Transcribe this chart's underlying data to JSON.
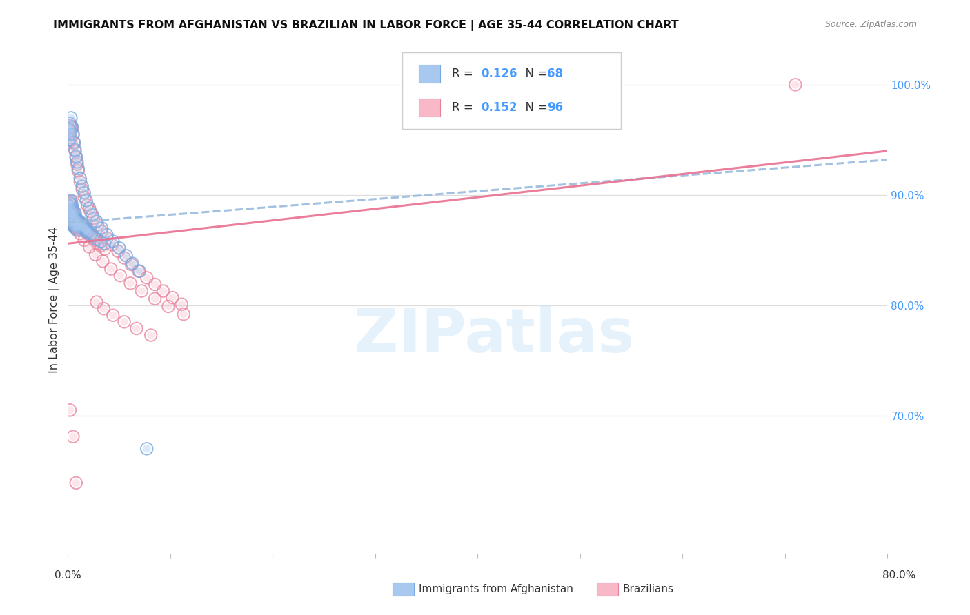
{
  "title": "IMMIGRANTS FROM AFGHANISTAN VS BRAZILIAN IN LABOR FORCE | AGE 35-44 CORRELATION CHART",
  "source": "Source: ZipAtlas.com",
  "xmin": 0.0,
  "xmax": 0.8,
  "ymin": 0.575,
  "ymax": 1.035,
  "afghanistan_color": "#a8c8f0",
  "afghanistan_edge": "#78a8e0",
  "brazil_color": "#f8b8c8",
  "brazil_edge": "#e88098",
  "trend_afg_color": "#99bbdd",
  "trend_bra_color": "#e87090",
  "afghanistan_R": 0.126,
  "afghanistan_N": 68,
  "brazil_R": 0.152,
  "brazil_N": 96,
  "legend_value_color": "#4499ff",
  "right_axis_color": "#4499ff",
  "watermark": "ZIPatlas",
  "grid_color": "#dddddd",
  "afg_x": [
    0.001,
    0.001,
    0.001,
    0.002,
    0.002,
    0.002,
    0.003,
    0.003,
    0.003,
    0.004,
    0.004,
    0.004,
    0.005,
    0.005,
    0.005,
    0.006,
    0.006,
    0.007,
    0.007,
    0.008,
    0.008,
    0.009,
    0.009,
    0.01,
    0.01,
    0.011,
    0.012,
    0.013,
    0.014,
    0.015,
    0.016,
    0.017,
    0.018,
    0.019,
    0.02,
    0.022,
    0.025,
    0.028,
    0.032,
    0.036,
    0.001,
    0.001,
    0.002,
    0.002,
    0.003,
    0.003,
    0.004,
    0.005,
    0.006,
    0.007,
    0.008,
    0.009,
    0.01,
    0.012,
    0.014,
    0.016,
    0.018,
    0.021,
    0.024,
    0.028,
    0.033,
    0.038,
    0.044,
    0.05,
    0.057,
    0.063,
    0.07,
    0.077
  ],
  "afg_y": [
    0.883,
    0.877,
    0.89,
    0.885,
    0.893,
    0.875,
    0.887,
    0.881,
    0.895,
    0.883,
    0.875,
    0.891,
    0.878,
    0.886,
    0.872,
    0.882,
    0.876,
    0.884,
    0.87,
    0.879,
    0.873,
    0.876,
    0.868,
    0.877,
    0.871,
    0.874,
    0.872,
    0.875,
    0.871,
    0.873,
    0.87,
    0.868,
    0.869,
    0.866,
    0.867,
    0.865,
    0.863,
    0.86,
    0.858,
    0.856,
    0.96,
    0.95,
    0.965,
    0.955,
    0.97,
    0.958,
    0.962,
    0.955,
    0.948,
    0.941,
    0.935,
    0.93,
    0.924,
    0.915,
    0.908,
    0.902,
    0.895,
    0.888,
    0.882,
    0.876,
    0.87,
    0.864,
    0.858,
    0.852,
    0.845,
    0.838,
    0.831,
    0.67
  ],
  "bra_x": [
    0.001,
    0.001,
    0.001,
    0.002,
    0.002,
    0.002,
    0.003,
    0.003,
    0.003,
    0.004,
    0.004,
    0.005,
    0.005,
    0.005,
    0.006,
    0.006,
    0.007,
    0.007,
    0.008,
    0.008,
    0.009,
    0.009,
    0.01,
    0.01,
    0.011,
    0.012,
    0.013,
    0.014,
    0.015,
    0.016,
    0.017,
    0.018,
    0.019,
    0.02,
    0.022,
    0.024,
    0.026,
    0.029,
    0.032,
    0.036,
    0.001,
    0.001,
    0.002,
    0.003,
    0.004,
    0.005,
    0.006,
    0.007,
    0.008,
    0.009,
    0.01,
    0.012,
    0.014,
    0.016,
    0.019,
    0.022,
    0.025,
    0.029,
    0.033,
    0.038,
    0.043,
    0.049,
    0.055,
    0.062,
    0.069,
    0.077,
    0.085,
    0.093,
    0.102,
    0.111,
    0.002,
    0.004,
    0.006,
    0.009,
    0.012,
    0.016,
    0.021,
    0.027,
    0.034,
    0.042,
    0.051,
    0.061,
    0.072,
    0.085,
    0.098,
    0.113,
    0.028,
    0.035,
    0.044,
    0.055,
    0.067,
    0.081,
    0.002,
    0.005,
    0.008,
    0.71
  ],
  "bra_y": [
    0.882,
    0.875,
    0.89,
    0.884,
    0.892,
    0.874,
    0.886,
    0.879,
    0.894,
    0.882,
    0.876,
    0.879,
    0.873,
    0.887,
    0.88,
    0.874,
    0.883,
    0.877,
    0.878,
    0.872,
    0.875,
    0.869,
    0.876,
    0.87,
    0.873,
    0.871,
    0.874,
    0.87,
    0.872,
    0.869,
    0.867,
    0.868,
    0.865,
    0.866,
    0.863,
    0.861,
    0.859,
    0.856,
    0.854,
    0.851,
    0.958,
    0.948,
    0.963,
    0.952,
    0.961,
    0.955,
    0.947,
    0.94,
    0.934,
    0.928,
    0.922,
    0.912,
    0.905,
    0.898,
    0.891,
    0.885,
    0.879,
    0.873,
    0.867,
    0.861,
    0.855,
    0.849,
    0.843,
    0.837,
    0.831,
    0.825,
    0.819,
    0.813,
    0.807,
    0.801,
    0.89,
    0.884,
    0.878,
    0.871,
    0.865,
    0.859,
    0.853,
    0.846,
    0.84,
    0.833,
    0.827,
    0.82,
    0.813,
    0.806,
    0.799,
    0.792,
    0.803,
    0.797,
    0.791,
    0.785,
    0.779,
    0.773,
    0.705,
    0.681,
    0.639,
    1.0
  ]
}
